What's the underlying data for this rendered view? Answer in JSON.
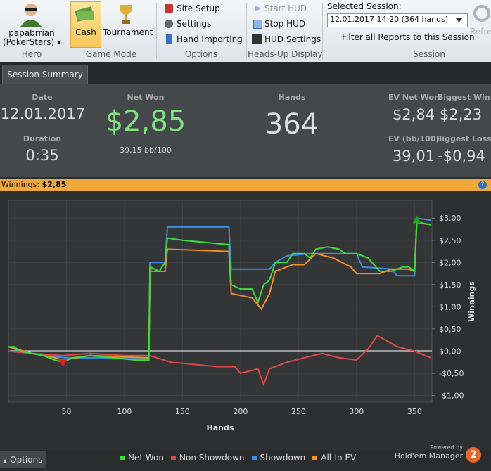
{
  "toolbar": {
    "hero": {
      "name": "papabrrian",
      "site": "(PokerStars) ▾",
      "group": "Hero"
    },
    "game_mode": {
      "cash": "Cash",
      "tournament": "Tournament",
      "group": "Game Mode"
    },
    "options": {
      "site_setup": "Site Setup",
      "settings": "Settings",
      "hand_importing": "Hand Importing",
      "group": "Options"
    },
    "hud": {
      "start": "Start HUD",
      "stop": "Stop HUD",
      "settings": "HUD Settings",
      "group": "Heads-Up Display"
    },
    "session": {
      "label": "Selected Session:",
      "selected": "12.01.2017 14:20 (364 hands)",
      "filter": "Filter all Reports to this Session",
      "group": "Session",
      "refresh": "Refresh"
    }
  },
  "tab": "Session Summary",
  "summary": {
    "date_label": "Date",
    "date": "12.01.2017",
    "duration_label": "Duration",
    "duration": "0:35",
    "net_won_label": "Net Won",
    "net_won": "$2,85",
    "bb100": "39,15 bb/100",
    "hands_label": "Hands",
    "hands": "364",
    "ev_net_won_label": "EV Net Won",
    "ev_net_won": "$2,84",
    "biggest_win_label": "Biggest Win",
    "biggest_win": "$2,23",
    "ev_bb100_label": "EV (bb/100)",
    "ev_bb100": "39,01",
    "biggest_loss_label": "Biggest Loss",
    "biggest_loss": "-$0,94"
  },
  "winnings_bar": {
    "label": "Winnings:",
    "value": "$2,85"
  },
  "chart_data": {
    "type": "line",
    "xlabel": "Hands",
    "ylabel": "Winnings",
    "xlim": [
      0,
      365
    ],
    "ylim": [
      -1.15,
      3.4
    ],
    "xticks": [
      50,
      100,
      150,
      200,
      250,
      300,
      350
    ],
    "yticks": [
      {
        "value": -1,
        "label": "-$1,00"
      },
      {
        "value": -0.5,
        "label": "-$0,50"
      },
      {
        "value": 0,
        "label": "$0,00"
      },
      {
        "value": 0.5,
        "label": "$0,50"
      },
      {
        "value": 1,
        "label": "$1,00"
      },
      {
        "value": 1.5,
        "label": "$1,50"
      },
      {
        "value": 2,
        "label": "$2,00"
      },
      {
        "value": 2.5,
        "label": "$2,50"
      },
      {
        "value": 3,
        "label": "$3,00"
      }
    ],
    "grid": true,
    "series": [
      {
        "name": "Non Showdown",
        "color": "#e04848",
        "x": [
          0,
          20,
          47,
          70,
          100,
          122,
          140,
          160,
          180,
          195,
          200,
          215,
          220,
          225,
          240,
          255,
          270,
          285,
          300,
          310,
          318,
          325,
          335,
          350,
          364
        ],
        "values": [
          0,
          -0.05,
          -0.1,
          -0.05,
          -0.1,
          -0.1,
          -0.25,
          -0.3,
          -0.35,
          -0.35,
          -0.5,
          -0.4,
          -0.75,
          -0.4,
          -0.25,
          -0.15,
          -0.05,
          -0.15,
          -0.2,
          0.05,
          0.35,
          0.25,
          0.1,
          0,
          -0.15
        ]
      },
      {
        "name": "Showdown",
        "color": "#3a8ee6",
        "x": [
          0,
          10,
          30,
          50,
          70,
          121,
          122,
          135,
          137,
          190,
          192,
          215,
          225,
          230,
          240,
          260,
          300,
          305,
          330,
          335,
          350,
          352,
          364
        ],
        "values": [
          0.1,
          0,
          -0.1,
          -0.15,
          -0.15,
          -0.15,
          2,
          2,
          2.8,
          2.8,
          1.85,
          1.85,
          1.85,
          2,
          2.15,
          2.2,
          2.2,
          1.9,
          1.85,
          1.7,
          1.7,
          3,
          2.95
        ]
      },
      {
        "name": "All-In EV",
        "color": "#f0902a",
        "x": [
          0,
          20,
          40,
          47,
          70,
          121,
          122,
          135,
          137,
          190,
          192,
          210,
          218,
          225,
          230,
          245,
          255,
          265,
          280,
          295,
          300,
          320,
          330,
          345,
          350,
          352,
          364
        ],
        "values": [
          0.1,
          -0.05,
          -0.15,
          -0.2,
          -0.1,
          -0.15,
          1.8,
          1.8,
          2.3,
          2.25,
          1.3,
          1.2,
          0.95,
          1.3,
          1.8,
          1.95,
          1.95,
          2.2,
          2.1,
          1.9,
          1.75,
          1.75,
          1.85,
          1.85,
          1.8,
          2.9,
          2.85
        ]
      },
      {
        "name": "Net Won",
        "color": "#3ddc3d",
        "x": [
          0,
          5,
          10,
          20,
          30,
          40,
          47,
          55,
          70,
          90,
          110,
          121,
          122,
          130,
          135,
          137,
          150,
          170,
          190,
          192,
          200,
          210,
          215,
          220,
          225,
          230,
          240,
          245,
          255,
          260,
          265,
          275,
          285,
          290,
          300,
          310,
          320,
          330,
          340,
          345,
          350,
          352,
          355,
          364
        ],
        "values": [
          0.1,
          0.1,
          0,
          -0.05,
          -0.1,
          -0.2,
          -0.25,
          -0.15,
          -0.1,
          -0.15,
          -0.2,
          -0.2,
          1.9,
          1.8,
          2,
          2.55,
          2.5,
          2.45,
          2.4,
          1.5,
          1.4,
          1.4,
          1.1,
          1.5,
          1.6,
          2,
          2,
          2.2,
          2.2,
          2.1,
          2.3,
          2.35,
          2.3,
          2.2,
          2.2,
          2.1,
          1.8,
          1.8,
          1.9,
          1.9,
          1.8,
          2.95,
          2.9,
          2.85
        ]
      }
    ]
  },
  "footer": {
    "options": "Options",
    "powered_by": "Powered by",
    "brand": "Hold'em Manager"
  }
}
